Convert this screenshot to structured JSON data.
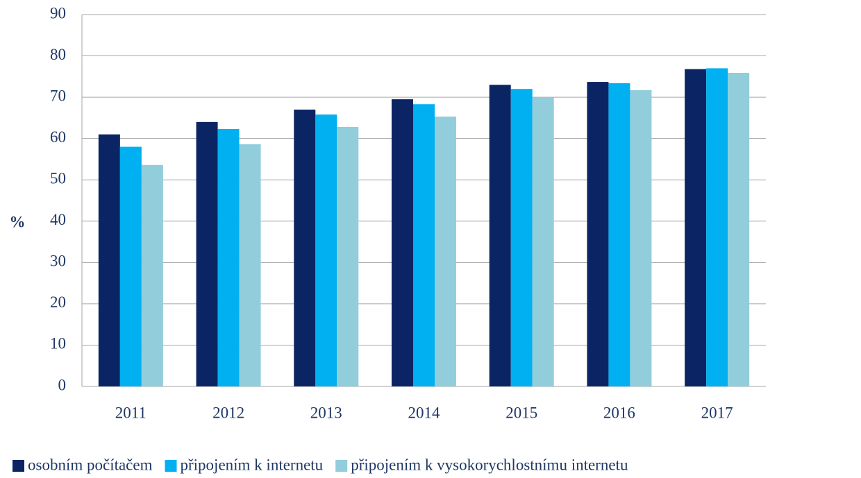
{
  "chart_data": {
    "type": "bar",
    "ylabel": "%",
    "categories": [
      "2011",
      "2012",
      "2013",
      "2014",
      "2015",
      "2016",
      "2017"
    ],
    "series": [
      {
        "name": "osobním počítačem",
        "color": "#0b2463",
        "values": [
          61,
          64,
          67,
          69.5,
          73,
          73.7,
          76.8
        ]
      },
      {
        "name": "připojením k internetu",
        "color": "#00b0f0",
        "values": [
          58,
          62.3,
          65.8,
          68.3,
          72,
          73.4,
          77
        ]
      },
      {
        "name": "připojením k vysokorychlostnímu internetu",
        "color": "#92cddc",
        "values": [
          53.6,
          58.6,
          62.8,
          65.3,
          70,
          71.7,
          75.9
        ]
      }
    ],
    "ylim": [
      0,
      90
    ],
    "yticks": [
      0,
      10,
      20,
      30,
      40,
      50,
      60,
      70,
      80,
      90
    ],
    "grid": true,
    "legend": "bottom"
  }
}
